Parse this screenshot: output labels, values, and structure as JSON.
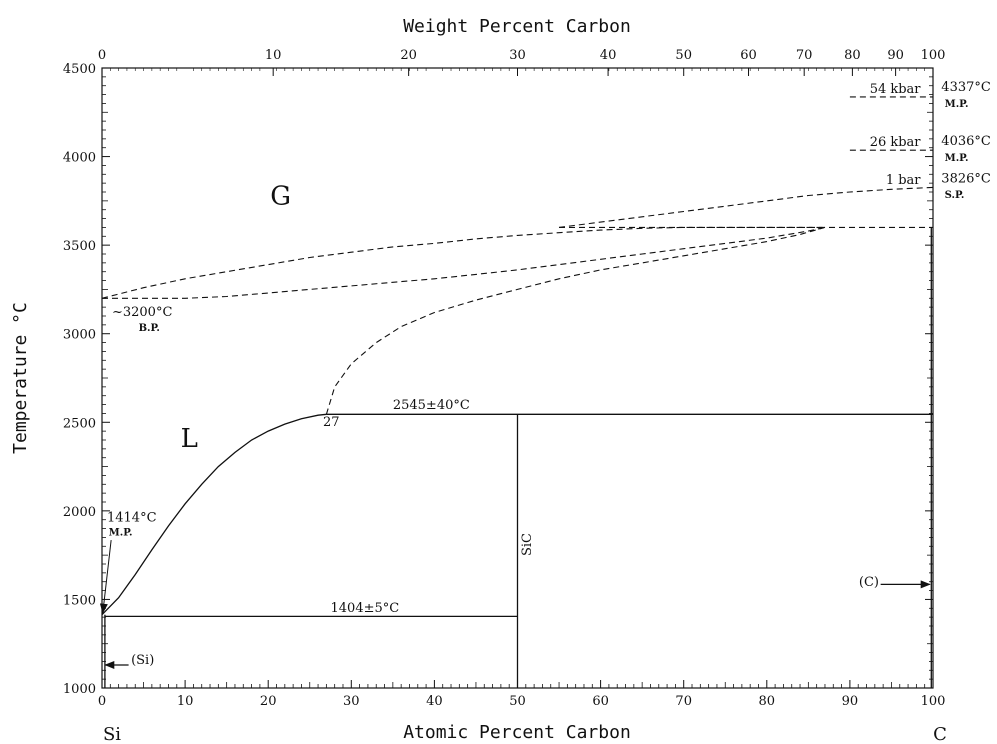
{
  "chart_data": {
    "type": "line",
    "title": "",
    "x_top_label": "Weight Percent Carbon",
    "xlabel": "Atomic Percent Carbon",
    "ylabel": "Temperature °C",
    "xlim": [
      0,
      100
    ],
    "ylim": [
      1000,
      4500
    ],
    "x_bottom_ticks": [
      0,
      10,
      20,
      30,
      40,
      50,
      60,
      70,
      80,
      90,
      100
    ],
    "x_top_ticks": [
      {
        "label": "0",
        "at": 0
      },
      {
        "label": "10",
        "at": 20.6
      },
      {
        "label": "20",
        "at": 36.9
      },
      {
        "label": "30",
        "at": 50.0
      },
      {
        "label": "40",
        "at": 60.9
      },
      {
        "label": "50",
        "at": 70.0
      },
      {
        "label": "60",
        "at": 77.8
      },
      {
        "label": "70",
        "at": 84.5
      },
      {
        "label": "80",
        "at": 90.3
      },
      {
        "label": "90",
        "at": 95.5
      },
      {
        "label": "100",
        "at": 100
      }
    ],
    "y_ticks": [
      1000,
      1500,
      2000,
      2500,
      3000,
      3500,
      4000,
      4500
    ],
    "end_labels": {
      "left": "Si",
      "right": "C"
    },
    "series": [
      {
        "style": "solid",
        "x": [
          0,
          2,
          4,
          6,
          8,
          10,
          12,
          14,
          16,
          18,
          20,
          22,
          24,
          26,
          27
        ],
        "y": [
          1414,
          1510,
          1640,
          1780,
          1915,
          2040,
          2150,
          2250,
          2330,
          2400,
          2450,
          2490,
          2520,
          2540,
          2545
        ]
      },
      {
        "style": "solid",
        "x": [
          0.4,
          50
        ],
        "y": [
          1404,
          1404
        ]
      },
      {
        "style": "solid",
        "x": [
          27,
          100
        ],
        "y": [
          2545,
          2545
        ]
      },
      {
        "style": "solid",
        "x": [
          50,
          50
        ],
        "y": [
          1000,
          2545
        ]
      },
      {
        "style": "solid",
        "x": [
          0.35,
          0.35
        ],
        "y": [
          1000,
          1414
        ]
      },
      {
        "style": "solid",
        "x": [
          99.8,
          99.8
        ],
        "y": [
          1000,
          3600
        ]
      },
      {
        "style": "dashed",
        "x": [
          27,
          28,
          30,
          33,
          36,
          40,
          45,
          50,
          55,
          60,
          65,
          70,
          75,
          80,
          84,
          87
        ],
        "y": [
          2545,
          2700,
          2830,
          2950,
          3040,
          3120,
          3190,
          3250,
          3310,
          3360,
          3400,
          3440,
          3480,
          3520,
          3560,
          3600
        ]
      },
      {
        "style": "dashed",
        "x": [
          0,
          5,
          10,
          15,
          20,
          25,
          30,
          35,
          40,
          45,
          50,
          55,
          60,
          65,
          70,
          75,
          80,
          85,
          87
        ],
        "y": [
          3200,
          3200,
          3200,
          3210,
          3230,
          3250,
          3270,
          3290,
          3310,
          3335,
          3360,
          3390,
          3420,
          3450,
          3480,
          3510,
          3540,
          3580,
          3600
        ]
      },
      {
        "style": "dashed",
        "x": [
          0,
          5,
          10,
          15,
          20,
          25,
          30,
          35,
          40,
          45,
          50,
          55,
          60,
          65,
          70,
          75,
          80,
          87
        ],
        "y": [
          3200,
          3260,
          3310,
          3350,
          3390,
          3430,
          3460,
          3490,
          3510,
          3535,
          3555,
          3570,
          3585,
          3595,
          3600,
          3600,
          3600,
          3600
        ]
      },
      {
        "style": "dashed",
        "x": [
          55,
          60,
          65,
          70,
          75,
          80,
          85,
          90,
          95,
          100
        ],
        "y": [
          3600,
          3630,
          3660,
          3690,
          3720,
          3750,
          3780,
          3800,
          3815,
          3826
        ]
      },
      {
        "style": "dashed",
        "x": [
          55,
          100
        ],
        "y": [
          3600,
          3600
        ]
      },
      {
        "style": "dashed",
        "x": [
          90,
          100
        ],
        "y": [
          4036,
          4036
        ]
      },
      {
        "style": "dashed",
        "x": [
          90,
          100
        ],
        "y": [
          4337,
          4337
        ]
      }
    ],
    "annotations": [
      {
        "text": "G",
        "x": 21.5,
        "y": 3730,
        "size": "large"
      },
      {
        "text": "L",
        "x": 10.5,
        "y": 2360,
        "size": "large"
      },
      {
        "text": "~3200°C",
        "x": 1.2,
        "y": 3100,
        "size": "small",
        "anchor": "start"
      },
      {
        "text": "B.P.",
        "x": 4.4,
        "y": 3015,
        "size": "tiny",
        "anchor": "start"
      },
      {
        "text": "27",
        "x": 26.6,
        "y": 2480,
        "size": "small",
        "anchor": "start"
      },
      {
        "text": "2545±40°C",
        "x": 35,
        "y": 2575,
        "size": "small",
        "anchor": "start"
      },
      {
        "text": "1404±5°C",
        "x": 27.5,
        "y": 1430,
        "size": "small",
        "anchor": "start"
      },
      {
        "text": "1414°C",
        "x": 0.6,
        "y": 1940,
        "size": "small",
        "anchor": "start"
      },
      {
        "text": "M.P.",
        "x": 0.8,
        "y": 1860,
        "size": "tiny",
        "anchor": "start"
      },
      {
        "text": "SiC",
        "x": 51.6,
        "y": 1810,
        "size": "small",
        "anchor": "middle",
        "rotate": -90
      },
      {
        "text": "(Si)",
        "x": 3.5,
        "y": 1135,
        "size": "small",
        "anchor": "start"
      },
      {
        "text": "(C)",
        "x": 93.5,
        "y": 1575,
        "size": "small",
        "anchor": "end"
      },
      {
        "text": "1 bar",
        "x": 98.5,
        "y": 3845,
        "size": "small",
        "anchor": "end"
      },
      {
        "text": "26 kbar",
        "x": 98.5,
        "y": 4060,
        "size": "small",
        "anchor": "end"
      },
      {
        "text": "54 kbar",
        "x": 98.5,
        "y": 4360,
        "size": "small",
        "anchor": "end"
      },
      {
        "text": "3826°C",
        "x": 101,
        "y": 3855,
        "size": "small",
        "anchor": "start"
      },
      {
        "text": "S.P.",
        "x": 101.4,
        "y": 3765,
        "size": "tiny",
        "anchor": "start"
      },
      {
        "text": "4036°C",
        "x": 101,
        "y": 4065,
        "size": "small",
        "anchor": "start"
      },
      {
        "text": "M.P.",
        "x": 101.4,
        "y": 3975,
        "size": "tiny",
        "anchor": "start"
      },
      {
        "text": "4337°C",
        "x": 101,
        "y": 4370,
        "size": "small",
        "anchor": "start"
      },
      {
        "text": "M.P.",
        "x": 101.4,
        "y": 4280,
        "size": "tiny",
        "anchor": "start"
      }
    ]
  }
}
